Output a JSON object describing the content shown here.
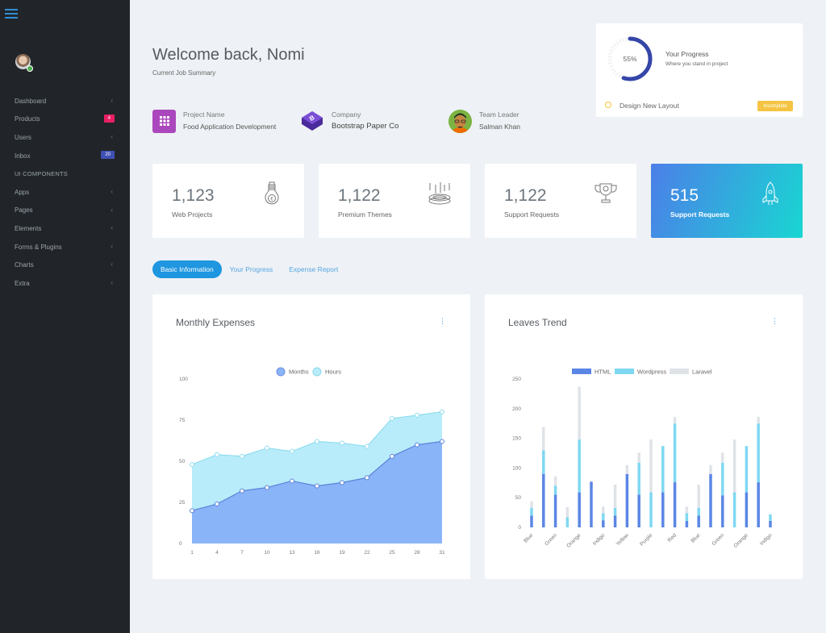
{
  "sidebar": {
    "menu_icon": "hamburger-icon",
    "items": [
      {
        "label": "Dashboard",
        "chevron": "‹"
      },
      {
        "label": "Products",
        "badge": "4",
        "badge_color": "#e91e63"
      },
      {
        "label": "Users",
        "chevron": "‹"
      },
      {
        "label": "Inbox",
        "badge": "20",
        "badge_color": "#3f51b5"
      }
    ],
    "section_header": "UI COMPONENTS",
    "components": [
      {
        "label": "Apps",
        "chevron": "‹"
      },
      {
        "label": "Pages",
        "chevron": "‹"
      },
      {
        "label": "Elements",
        "chevron": "‹"
      },
      {
        "label": "Forms & Plugins",
        "chevron": "‹"
      },
      {
        "label": "Charts",
        "chevron": "‹"
      },
      {
        "label": "Extra",
        "chevron": "‹"
      }
    ]
  },
  "header": {
    "title": "Welcome back, Nomi",
    "subtitle": "Current Job Summary"
  },
  "job": {
    "project": {
      "label": "Project Name",
      "value": "Food Application Development",
      "icon": "grid-icon",
      "color": "#ab47bc"
    },
    "company": {
      "label": "Company",
      "value": "Bootstrap Paper Co",
      "icon": "bootstrap-logo-icon",
      "color": "#6a3fc9"
    },
    "leader": {
      "label": "Team Leader",
      "value": "Salman Khan",
      "icon": "leader-avatar"
    }
  },
  "progress": {
    "percent": 55,
    "percent_label": "55%",
    "title": "Your Progress",
    "subtitle": "Where you stand in project",
    "task": "Design New Layout",
    "status": "Incomplete",
    "accent": "#3546a8",
    "status_color": "#f6c443"
  },
  "stats": [
    {
      "value": "1,123",
      "label": "Web Projects",
      "icon": "lightbulb-euro-icon"
    },
    {
      "value": "1,122",
      "label": "Premium Themes",
      "icon": "target-arrows-icon"
    },
    {
      "value": "1,122",
      "label": "Support Requests",
      "icon": "trophy-icon"
    },
    {
      "value": "515",
      "label": "Support Requests",
      "icon": "rocket-icon"
    }
  ],
  "tabs": [
    {
      "label": "Basic Information",
      "active": true
    },
    {
      "label": "Your Progress",
      "active": false
    },
    {
      "label": "Expense Report",
      "active": false
    }
  ],
  "charts": {
    "monthly": {
      "title": "Monthly Expenses",
      "menu": "⋮"
    },
    "leaves": {
      "title": "Leaves Trend",
      "menu": "⋮"
    }
  },
  "chart_data": [
    {
      "type": "area",
      "title": "Monthly Expenses",
      "x": [
        1,
        4,
        7,
        10,
        13,
        16,
        19,
        22,
        25,
        28,
        31
      ],
      "series": [
        {
          "name": "Months",
          "color": "#8ab4f8",
          "values": [
            20,
            24,
            32,
            34,
            38,
            35,
            37,
            40,
            53,
            60,
            62
          ]
        },
        {
          "name": "Hours",
          "color": "#b9ecfa",
          "values": [
            48,
            54,
            53,
            58,
            56,
            62,
            61,
            59,
            76,
            78,
            80
          ]
        }
      ],
      "ylim": [
        0,
        100
      ],
      "yticks": [
        0,
        25,
        50,
        75,
        100
      ],
      "legend_position": "top",
      "grid": false
    },
    {
      "type": "bar",
      "stacked": true,
      "title": "Leaves Trend",
      "categories": [
        "Blue",
        "",
        "Green",
        "",
        "Orange",
        "",
        "Indigo",
        "",
        "Yellow",
        "",
        "Purple",
        "",
        "Red",
        "",
        "Blue",
        "",
        "Green",
        "",
        "Orange",
        "",
        "Indigo"
      ],
      "series": [
        {
          "name": "HTML",
          "color": "#5b86e5",
          "values": [
            20,
            90,
            55,
            0,
            59,
            77,
            12,
            20,
            90,
            55,
            0,
            59,
            76,
            11,
            20,
            90,
            54,
            0,
            59,
            76,
            11
          ]
        },
        {
          "name": "Wordpress",
          "color": "#7fd8f2",
          "values": [
            13,
            40,
            15,
            17,
            89,
            0,
            12,
            13,
            0,
            54,
            59,
            78,
            99,
            13,
            13,
            0,
            55,
            59,
            78,
            99,
            11
          ]
        },
        {
          "name": "Laravel",
          "color": "#dfe3e8",
          "values": [
            11,
            39,
            16,
            17,
            89,
            0,
            11,
            39,
            15,
            17,
            89,
            0,
            11,
            11,
            39,
            15,
            17,
            89,
            0,
            11,
            0
          ]
        }
      ],
      "ylim": [
        0,
        250
      ],
      "yticks": [
        0,
        50,
        100,
        150,
        200,
        250
      ],
      "legend_position": "top",
      "grid": false
    }
  ]
}
